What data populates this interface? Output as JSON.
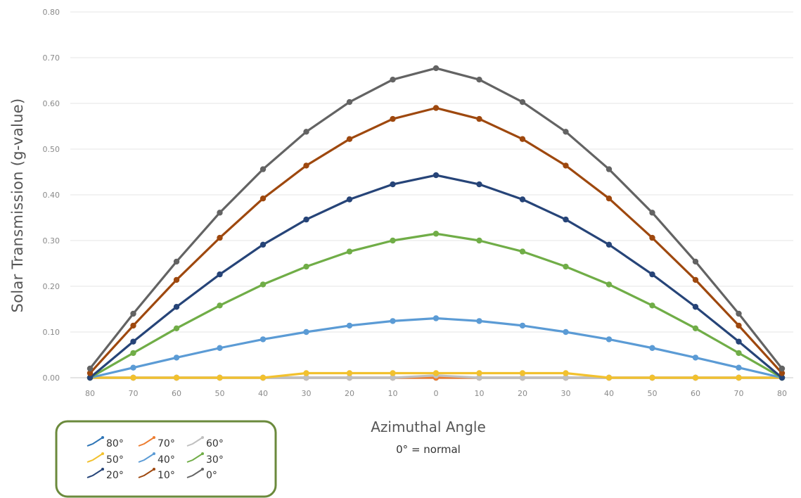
{
  "chart_data": {
    "type": "line",
    "title": "",
    "ylabel": "Solar Transmission (g-value)",
    "xlabel": "Azimuthal Angle",
    "xlabel_note": "0° = normal",
    "x": [
      "80",
      "70",
      "60",
      "50",
      "40",
      "30",
      "20",
      "10",
      "0",
      "10",
      "20",
      "30",
      "40",
      "50",
      "60",
      "70",
      "80"
    ],
    "yticks": [
      "0.00",
      "0.10",
      "0.20",
      "0.30",
      "0.40",
      "0.50",
      "0.60",
      "0.70",
      "0.80"
    ],
    "ylim": [
      0,
      0.8
    ],
    "grid": true,
    "legend_position": "bottom-left",
    "series": [
      {
        "name": "80°",
        "color": "#2e75b6",
        "values": [
          0,
          0,
          0,
          0,
          0,
          0,
          0,
          0,
          0,
          0,
          0,
          0,
          0,
          0,
          0,
          0,
          0
        ]
      },
      {
        "name": "70°",
        "color": "#ed7d31",
        "values": [
          0,
          0,
          0,
          0,
          0,
          0,
          0,
          0,
          0,
          0,
          0,
          0,
          0,
          0,
          0,
          0,
          0
        ]
      },
      {
        "name": "60°",
        "color": "#bfbfbf",
        "values": [
          0,
          0,
          0,
          0,
          0,
          0,
          0,
          0,
          0.005,
          0,
          0,
          0,
          0,
          0,
          0,
          0,
          0
        ]
      },
      {
        "name": "50°",
        "color": "#f2c12e",
        "values": [
          0,
          0,
          0,
          0,
          0,
          0.01,
          0.01,
          0.01,
          0.01,
          0.01,
          0.01,
          0.01,
          0,
          0,
          0,
          0,
          0
        ]
      },
      {
        "name": "40°",
        "color": "#5b9bd5",
        "values": [
          0,
          0.022,
          0.044,
          0.065,
          0.084,
          0.1,
          0.114,
          0.124,
          0.13,
          0.124,
          0.114,
          0.1,
          0.084,
          0.065,
          0.044,
          0.022,
          0
        ]
      },
      {
        "name": "30°",
        "color": "#70ad47",
        "values": [
          0,
          0.054,
          0.108,
          0.158,
          0.204,
          0.243,
          0.276,
          0.3,
          0.315,
          0.3,
          0.276,
          0.243,
          0.204,
          0.158,
          0.108,
          0.054,
          0
        ]
      },
      {
        "name": "20°",
        "color": "#264478",
        "values": [
          0,
          0.079,
          0.155,
          0.226,
          0.291,
          0.346,
          0.39,
          0.423,
          0.443,
          0.423,
          0.39,
          0.346,
          0.291,
          0.226,
          0.155,
          0.079,
          0
        ]
      },
      {
        "name": "10°",
        "color": "#9e480e",
        "values": [
          0.01,
          0.114,
          0.214,
          0.306,
          0.392,
          0.464,
          0.522,
          0.566,
          0.59,
          0.566,
          0.522,
          0.464,
          0.392,
          0.306,
          0.214,
          0.114,
          0.01
        ]
      },
      {
        "name": "0°",
        "color": "#636363",
        "values": [
          0.02,
          0.14,
          0.254,
          0.361,
          0.456,
          0.538,
          0.603,
          0.652,
          0.677,
          0.652,
          0.603,
          0.538,
          0.456,
          0.361,
          0.254,
          0.14,
          0.02
        ]
      }
    ]
  }
}
